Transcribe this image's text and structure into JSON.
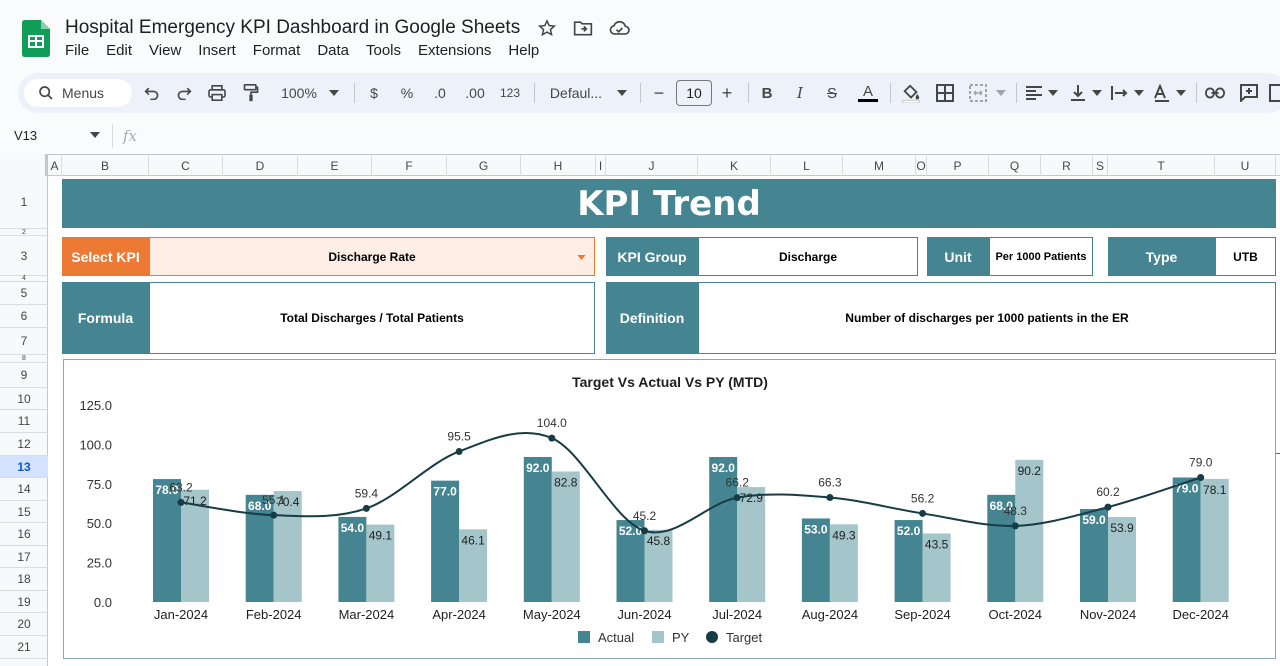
{
  "app": {
    "title": "Hospital Emergency KPI Dashboard in Google Sheets",
    "menu": [
      "File",
      "Edit",
      "View",
      "Insert",
      "Format",
      "Data",
      "Tools",
      "Extensions",
      "Help"
    ]
  },
  "toolbar": {
    "menus_label": "Menus",
    "zoom": "100%",
    "currency": "$",
    "percent": "%",
    "dec_decrease": ".0",
    "dec_increase": ".00",
    "number_format": "123",
    "font": "Defaul...",
    "font_size": "10",
    "minus": "−",
    "plus": "+",
    "bold": "B",
    "italic": "I",
    "strike": "S",
    "text_color": "A",
    "text_color_bar": "#000000"
  },
  "formula_bar": {
    "cell_ref": "V13",
    "fx": "fx"
  },
  "columns": [
    "A",
    "B",
    "C",
    "D",
    "E",
    "F",
    "G",
    "H",
    "I",
    "J",
    "K",
    "L",
    "M",
    "O",
    "P",
    "Q",
    "R",
    "S",
    "T",
    "U"
  ],
  "rows": [
    "1",
    "2",
    "3",
    "4",
    "5",
    "6",
    "7",
    "8",
    "9",
    "10",
    "11",
    "12",
    "13",
    "14",
    "15",
    "16",
    "17",
    "18",
    "19",
    "20",
    "21"
  ],
  "selected_row": "13",
  "dashboard": {
    "banner": "KPI Trend",
    "select_kpi_label": "Select KPI",
    "select_kpi_value": "Discharge Rate",
    "kpi_group_label": "KPI Group",
    "kpi_group_value": "Discharge",
    "unit_label": "Unit",
    "unit_value": "Per 1000 Patients",
    "type_label": "Type",
    "type_value": "UTB",
    "formula_label": "Formula",
    "formula_value": "Total Discharges / Total Patients",
    "definition_label": "Definition",
    "definition_value": "Number of discharges per 1000 patients in the ER"
  },
  "colors": {
    "teal": "#458592",
    "orange": "#ec7a34",
    "orange_light": "#fdede4",
    "actual": "#458592",
    "py": "#a4c5ca",
    "target": "#183c45"
  },
  "chart_data": {
    "type": "bar",
    "title": "Target Vs Actual Vs PY (MTD)",
    "categories": [
      "Jan-2024",
      "Feb-2024",
      "Mar-2024",
      "Apr-2024",
      "May-2024",
      "Jun-2024",
      "Jul-2024",
      "Aug-2024",
      "Sep-2024",
      "Oct-2024",
      "Nov-2024",
      "Dec-2024"
    ],
    "series": [
      {
        "name": "Actual",
        "kind": "bar",
        "values": [
          78.0,
          68.0,
          54.0,
          77.0,
          92.0,
          52.0,
          92.0,
          53.0,
          52.0,
          68.0,
          59.0,
          79.0
        ]
      },
      {
        "name": "PY",
        "kind": "bar",
        "values": [
          71.2,
          70.4,
          49.1,
          46.1,
          82.8,
          45.8,
          72.9,
          49.3,
          43.5,
          90.2,
          53.9,
          78.1
        ]
      },
      {
        "name": "Target",
        "kind": "line",
        "values": [
          63.2,
          55.1,
          59.4,
          95.5,
          104.0,
          45.2,
          66.2,
          66.3,
          56.2,
          48.3,
          60.2,
          79.0
        ]
      }
    ],
    "yticks": [
      "0.0",
      "25.0",
      "50.0",
      "75.0",
      "100.0",
      "125.0"
    ],
    "ylim": [
      0,
      125
    ],
    "legend": "bottom",
    "grid": false
  }
}
